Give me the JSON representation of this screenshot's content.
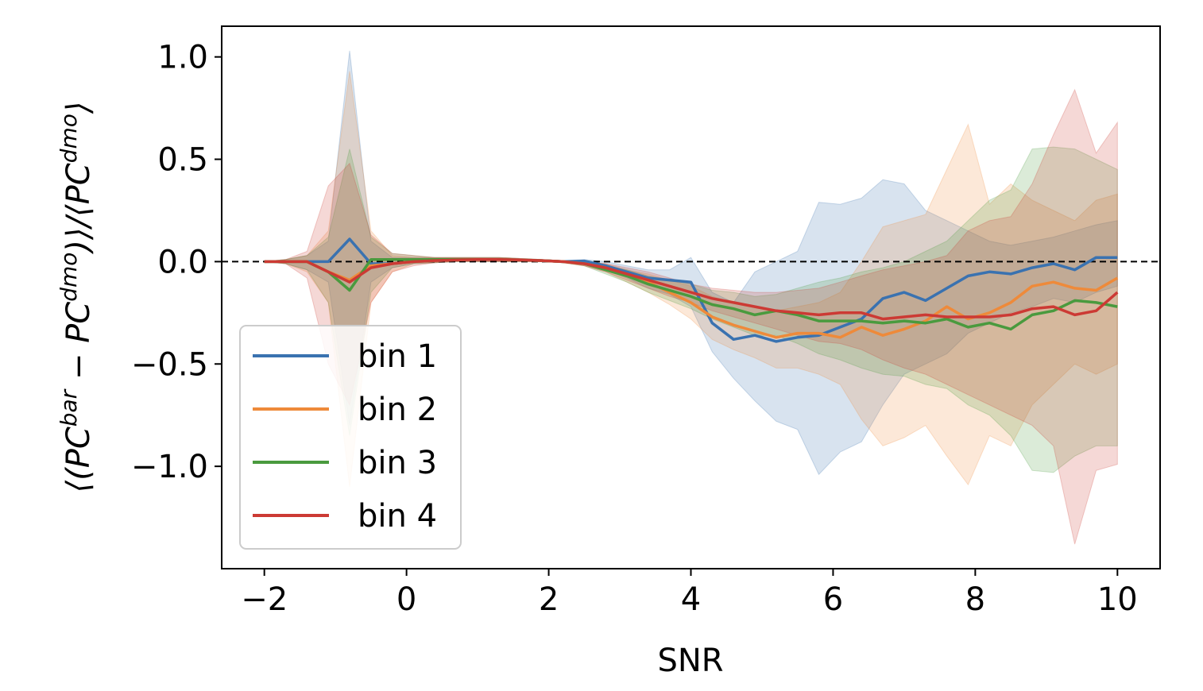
{
  "chart_data": {
    "type": "line",
    "title": "",
    "xlabel": "SNR",
    "ylabel": "⟨(PC^bar − PC^dmo)⟩/⟨PC^dmo⟩",
    "ylabel_parts": {
      "open": "⟨(PC",
      "sup1": "bar",
      "mid": " − PC",
      "sup2": "dmo",
      "close_open": ")⟩/⟨PC",
      "sup3": "dmo",
      "close": "⟩"
    },
    "xlim": [
      -2.6,
      10.6
    ],
    "ylim": [
      -1.5,
      1.15
    ],
    "xticks": [
      -2,
      0,
      2,
      4,
      6,
      8,
      10
    ],
    "xtick_labels": [
      "−2",
      "0",
      "2",
      "4",
      "6",
      "8",
      "10"
    ],
    "yticks": [
      1.0,
      0.5,
      0.0,
      -0.5,
      -1.0
    ],
    "ytick_labels": [
      "1.0",
      "0.5",
      "0.0",
      "−0.5",
      "−1.0"
    ],
    "reference_line": {
      "y": 0.0,
      "style": "dashed",
      "color": "#000000"
    },
    "legend": {
      "position": "lower-left",
      "entries": [
        "bin 1",
        "bin 2",
        "bin 3",
        "bin 4"
      ]
    },
    "x": [
      -2.0,
      -1.7,
      -1.4,
      -1.1,
      -0.8,
      -0.5,
      -0.2,
      0.1,
      0.4,
      0.7,
      1.0,
      1.3,
      1.6,
      1.9,
      2.2,
      2.5,
      2.8,
      3.1,
      3.4,
      3.7,
      4.0,
      4.3,
      4.6,
      4.9,
      5.2,
      5.5,
      5.8,
      6.1,
      6.4,
      6.7,
      7.0,
      7.3,
      7.6,
      7.9,
      8.2,
      8.5,
      8.8,
      9.1,
      9.4,
      9.7,
      10.0
    ],
    "series": [
      {
        "name": "bin 1",
        "color": "#3a72b0",
        "values": [
          0.0,
          0.0,
          0.0,
          0.0,
          0.11,
          -0.01,
          -0.01,
          0.0,
          0.005,
          0.008,
          0.01,
          0.01,
          0.008,
          0.005,
          0.0,
          0.003,
          -0.02,
          -0.05,
          -0.08,
          -0.09,
          -0.1,
          -0.3,
          -0.38,
          -0.36,
          -0.39,
          -0.37,
          -0.36,
          -0.32,
          -0.28,
          -0.18,
          -0.15,
          -0.19,
          -0.13,
          -0.07,
          -0.05,
          -0.06,
          -0.03,
          -0.01,
          -0.04,
          0.02,
          0.02
        ],
        "upper": [
          0.0,
          0.01,
          0.03,
          0.1,
          1.03,
          0.1,
          0.02,
          0.02,
          0.02,
          0.02,
          0.02,
          0.02,
          0.015,
          0.01,
          0.005,
          0.01,
          0.0,
          -0.02,
          -0.04,
          -0.04,
          0.02,
          -0.15,
          -0.2,
          -0.05,
          0.0,
          0.05,
          0.29,
          0.28,
          0.31,
          0.4,
          0.38,
          0.25,
          0.2,
          0.15,
          0.1,
          0.08,
          0.1,
          0.12,
          0.15,
          0.18,
          0.2
        ],
        "lower": [
          0.0,
          -0.01,
          -0.04,
          -0.1,
          -0.8,
          -0.1,
          -0.03,
          -0.01,
          -0.005,
          0.0,
          0.0,
          0.0,
          0.0,
          0.0,
          -0.005,
          -0.01,
          -0.04,
          -0.08,
          -0.13,
          -0.16,
          -0.22,
          -0.44,
          -0.57,
          -0.68,
          -0.78,
          -0.82,
          -1.04,
          -0.93,
          -0.88,
          -0.7,
          -0.55,
          -0.5,
          -0.45,
          -0.35,
          -0.3,
          -0.25,
          -0.22,
          -0.18,
          -0.2,
          -0.15,
          -0.12
        ]
      },
      {
        "name": "bin 2",
        "color": "#ee8a3a",
        "values": [
          0.0,
          0.0,
          0.0,
          -0.05,
          -0.09,
          -0.02,
          -0.01,
          0.0,
          0.005,
          0.008,
          0.01,
          0.01,
          0.008,
          0.005,
          0.0,
          -0.01,
          -0.03,
          -0.07,
          -0.1,
          -0.15,
          -0.2,
          -0.27,
          -0.31,
          -0.34,
          -0.37,
          -0.35,
          -0.35,
          -0.37,
          -0.32,
          -0.36,
          -0.33,
          -0.29,
          -0.22,
          -0.28,
          -0.25,
          -0.2,
          -0.12,
          -0.1,
          -0.13,
          -0.14,
          -0.08
        ],
        "upper": [
          0.0,
          0.01,
          0.03,
          0.15,
          0.93,
          0.15,
          0.03,
          0.02,
          0.02,
          0.02,
          0.02,
          0.02,
          0.015,
          0.01,
          0.005,
          0.0,
          -0.01,
          -0.04,
          -0.06,
          -0.09,
          -0.12,
          -0.17,
          -0.2,
          -0.22,
          -0.24,
          -0.22,
          -0.2,
          -0.15,
          0.0,
          0.17,
          0.2,
          0.23,
          0.45,
          0.67,
          0.28,
          0.38,
          0.3,
          0.25,
          0.2,
          0.3,
          0.33
        ],
        "lower": [
          0.0,
          -0.01,
          -0.05,
          -0.2,
          -1.1,
          -0.2,
          -0.05,
          -0.01,
          -0.005,
          0.0,
          0.0,
          0.0,
          0.0,
          0.0,
          -0.005,
          -0.02,
          -0.05,
          -0.1,
          -0.15,
          -0.21,
          -0.28,
          -0.38,
          -0.43,
          -0.47,
          -0.52,
          -0.52,
          -0.55,
          -0.6,
          -0.77,
          -0.9,
          -0.86,
          -0.8,
          -0.95,
          -1.09,
          -0.85,
          -0.9,
          -0.7,
          -0.6,
          -0.5,
          -0.55,
          -0.5
        ]
      },
      {
        "name": "bin 3",
        "color": "#4a9a3e",
        "values": [
          0.0,
          0.0,
          0.0,
          -0.05,
          -0.14,
          0.01,
          0.01,
          0.01,
          0.01,
          0.01,
          0.01,
          0.01,
          0.008,
          0.005,
          0.0,
          -0.01,
          -0.04,
          -0.07,
          -0.11,
          -0.14,
          -0.17,
          -0.21,
          -0.23,
          -0.26,
          -0.24,
          -0.26,
          -0.29,
          -0.29,
          -0.29,
          -0.3,
          -0.29,
          -0.3,
          -0.28,
          -0.32,
          -0.3,
          -0.33,
          -0.26,
          -0.24,
          -0.19,
          -0.2,
          -0.22
        ],
        "upper": [
          0.0,
          0.01,
          0.03,
          0.12,
          0.55,
          0.12,
          0.04,
          0.03,
          0.02,
          0.02,
          0.02,
          0.02,
          0.015,
          0.01,
          0.005,
          0.0,
          -0.02,
          -0.04,
          -0.07,
          -0.09,
          -0.11,
          -0.14,
          -0.15,
          -0.17,
          -0.16,
          -0.13,
          -0.1,
          -0.08,
          -0.05,
          -0.03,
          0.0,
          0.05,
          0.1,
          0.2,
          0.3,
          0.35,
          0.55,
          0.56,
          0.55,
          0.5,
          0.45
        ],
        "lower": [
          0.0,
          -0.01,
          -0.04,
          -0.2,
          -0.85,
          -0.15,
          -0.03,
          -0.01,
          -0.005,
          0.0,
          0.0,
          0.0,
          0.0,
          0.0,
          -0.005,
          -0.02,
          -0.06,
          -0.1,
          -0.15,
          -0.19,
          -0.23,
          -0.28,
          -0.32,
          -0.36,
          -0.36,
          -0.4,
          -0.45,
          -0.48,
          -0.52,
          -0.55,
          -0.56,
          -0.6,
          -0.62,
          -0.7,
          -0.75,
          -0.85,
          -1.02,
          -1.03,
          -0.95,
          -0.9,
          -0.9
        ]
      },
      {
        "name": "bin 4",
        "color": "#cc3a34",
        "values": [
          0.0,
          0.0,
          0.0,
          -0.05,
          -0.1,
          -0.03,
          -0.01,
          0.0,
          0.005,
          0.008,
          0.01,
          0.01,
          0.008,
          0.005,
          0.0,
          -0.01,
          -0.03,
          -0.06,
          -0.09,
          -0.12,
          -0.15,
          -0.18,
          -0.2,
          -0.22,
          -0.24,
          -0.25,
          -0.26,
          -0.25,
          -0.25,
          -0.28,
          -0.27,
          -0.26,
          -0.27,
          -0.27,
          -0.27,
          -0.26,
          -0.23,
          -0.22,
          -0.26,
          -0.24,
          -0.15
        ],
        "upper": [
          0.0,
          0.01,
          0.05,
          0.37,
          0.48,
          0.13,
          0.04,
          0.03,
          0.02,
          0.02,
          0.02,
          0.02,
          0.015,
          0.01,
          0.005,
          0.0,
          -0.01,
          -0.03,
          -0.05,
          -0.08,
          -0.11,
          -0.13,
          -0.14,
          -0.15,
          -0.15,
          -0.14,
          -0.13,
          -0.1,
          -0.07,
          -0.04,
          -0.02,
          0.0,
          0.03,
          0.15,
          0.2,
          0.22,
          0.38,
          0.62,
          0.84,
          0.53,
          0.68
        ],
        "lower": [
          0.0,
          -0.01,
          -0.08,
          -0.5,
          -0.7,
          -0.2,
          -0.05,
          -0.02,
          -0.005,
          0.0,
          0.0,
          0.0,
          0.0,
          0.0,
          -0.005,
          -0.02,
          -0.05,
          -0.09,
          -0.13,
          -0.17,
          -0.2,
          -0.24,
          -0.27,
          -0.3,
          -0.33,
          -0.36,
          -0.39,
          -0.4,
          -0.43,
          -0.48,
          -0.52,
          -0.55,
          -0.6,
          -0.65,
          -0.7,
          -0.75,
          -0.8,
          -0.9,
          -1.38,
          -1.02,
          -0.99
        ]
      }
    ]
  }
}
